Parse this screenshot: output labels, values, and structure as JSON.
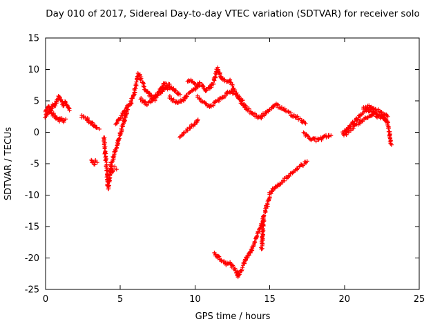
{
  "page": {
    "background": "#ffffff"
  },
  "chart_data": {
    "type": "scatter",
    "title": "Day 010 of 2017, Sidereal Day-to-day VTEC variation (SDTVAR) for receiver solo",
    "xlabel": "GPS time / hours",
    "ylabel": "SDTVAR / TECUs",
    "xlim": [
      0,
      25
    ],
    "ylim": [
      -25,
      15
    ],
    "x_ticks": [
      0,
      5,
      10,
      15,
      20,
      25
    ],
    "y_ticks": [
      -25,
      -20,
      -15,
      -10,
      -5,
      0,
      5,
      10,
      15
    ],
    "grid": false,
    "legend": "none",
    "marker": "plus",
    "marker_color": "#ff0000",
    "axis_color": "#000000",
    "series": [
      {
        "name": "track01",
        "points": [
          [
            0,
            3.2
          ],
          [
            0.1,
            3.8
          ],
          [
            0.2,
            4.2
          ],
          [
            0.3,
            3.6
          ],
          [
            0.4,
            4.0
          ],
          [
            0.5,
            4.4
          ],
          [
            0.6,
            4.1
          ],
          [
            0.7,
            4.6
          ],
          [
            0.8,
            5.0
          ],
          [
            0.9,
            5.6
          ],
          [
            1.0,
            5.2
          ],
          [
            1.1,
            4.8
          ],
          [
            1.2,
            4.4
          ],
          [
            1.3,
            4.7
          ],
          [
            1.4,
            4.3
          ],
          [
            1.5,
            3.9
          ],
          [
            1.6,
            3.5
          ]
        ]
      },
      {
        "name": "track02",
        "points": [
          [
            0,
            2.6
          ],
          [
            0.15,
            3.0
          ],
          [
            0.3,
            3.4
          ],
          [
            0.45,
            3.0
          ],
          [
            0.6,
            2.6
          ],
          [
            0.75,
            2.2
          ],
          [
            0.9,
            1.9
          ],
          [
            1.05,
            2.2
          ],
          [
            1.2,
            1.8
          ],
          [
            1.35,
            2.1
          ]
        ]
      },
      {
        "name": "track03",
        "points": [
          [
            2.4,
            2.6
          ],
          [
            2.55,
            2.4
          ],
          [
            2.7,
            2.3
          ],
          [
            2.85,
            2.0
          ],
          [
            3.0,
            1.6
          ],
          [
            3.15,
            1.3
          ],
          [
            3.3,
            1.0
          ],
          [
            3.45,
            0.7
          ],
          [
            3.6,
            0.5
          ]
        ]
      },
      {
        "name": "track04",
        "points": [
          [
            3.05,
            -4.4
          ],
          [
            3.15,
            -4.7
          ],
          [
            3.25,
            -4.9
          ],
          [
            3.35,
            -4.6
          ],
          [
            3.45,
            -4.8
          ]
        ]
      },
      {
        "name": "track05",
        "points": [
          [
            3.9,
            -0.8
          ],
          [
            3.95,
            -2.0
          ],
          [
            4.0,
            -3.5
          ],
          [
            4.05,
            -5.0
          ],
          [
            4.1,
            -6.5
          ],
          [
            4.15,
            -8.0
          ],
          [
            4.2,
            -8.8
          ],
          [
            4.25,
            -7.8
          ],
          [
            4.3,
            -6.8
          ],
          [
            4.35,
            -5.8
          ],
          [
            4.4,
            -5.0
          ],
          [
            4.5,
            -4.2
          ],
          [
            4.6,
            -3.4
          ],
          [
            4.7,
            -2.6
          ],
          [
            4.8,
            -1.8
          ],
          [
            4.9,
            -1.0
          ],
          [
            5.0,
            -0.2
          ],
          [
            5.1,
            0.6
          ],
          [
            5.2,
            1.4
          ],
          [
            5.3,
            2.2
          ],
          [
            5.4,
            3.0
          ],
          [
            5.5,
            3.6
          ]
        ]
      },
      {
        "name": "track06",
        "points": [
          [
            4.45,
            -6.2
          ],
          [
            4.55,
            -5.9
          ],
          [
            4.65,
            -5.6
          ],
          [
            4.75,
            -5.9
          ]
        ]
      },
      {
        "name": "track07",
        "points": [
          [
            4.7,
            1.2
          ],
          [
            4.9,
            2.0
          ],
          [
            5.1,
            2.8
          ],
          [
            5.3,
            3.4
          ],
          [
            5.5,
            4.0
          ],
          [
            5.7,
            4.8
          ],
          [
            5.9,
            6.0
          ],
          [
            6.0,
            7.0
          ],
          [
            6.1,
            8.2
          ],
          [
            6.2,
            9.4
          ],
          [
            6.3,
            9.0
          ],
          [
            6.4,
            8.4
          ],
          [
            6.5,
            7.8
          ],
          [
            6.6,
            7.2
          ],
          [
            6.7,
            6.8
          ],
          [
            6.9,
            6.2
          ],
          [
            7.1,
            5.6
          ],
          [
            7.3,
            5.2
          ],
          [
            7.5,
            5.8
          ],
          [
            7.7,
            6.4
          ],
          [
            7.9,
            6.9
          ],
          [
            8.1,
            7.1
          ],
          [
            8.3,
            7.0
          ]
        ]
      },
      {
        "name": "track08",
        "points": [
          [
            6.4,
            5.2
          ],
          [
            6.6,
            4.8
          ],
          [
            6.8,
            4.5
          ],
          [
            7.0,
            4.9
          ],
          [
            7.2,
            5.3
          ],
          [
            7.4,
            5.9
          ],
          [
            7.6,
            6.4
          ],
          [
            7.8,
            7.2
          ],
          [
            8.0,
            7.8
          ],
          [
            8.2,
            7.6
          ],
          [
            8.4,
            7.2
          ],
          [
            8.6,
            6.6
          ],
          [
            8.8,
            6.3
          ],
          [
            9.0,
            6.0
          ]
        ]
      },
      {
        "name": "track09",
        "points": [
          [
            8.3,
            5.6
          ],
          [
            8.5,
            5.2
          ],
          [
            8.7,
            4.9
          ],
          [
            8.9,
            4.7
          ],
          [
            9.1,
            5.0
          ],
          [
            9.3,
            5.4
          ],
          [
            9.5,
            5.9
          ],
          [
            9.7,
            6.3
          ],
          [
            9.9,
            6.7
          ],
          [
            10.1,
            7.1
          ],
          [
            10.3,
            7.4
          ]
        ]
      },
      {
        "name": "track10",
        "points": [
          [
            9.0,
            -0.6
          ],
          [
            9.2,
            -0.2
          ],
          [
            9.4,
            0.2
          ],
          [
            9.6,
            0.6
          ],
          [
            9.8,
            1.0
          ],
          [
            10.0,
            1.5
          ],
          [
            10.2,
            2.0
          ]
        ]
      },
      {
        "name": "track11",
        "points": [
          [
            9.5,
            7.9
          ],
          [
            9.7,
            8.3
          ],
          [
            9.9,
            8.0
          ],
          [
            10.1,
            7.6
          ],
          [
            10.3,
            7.9
          ],
          [
            10.5,
            7.3
          ],
          [
            10.7,
            6.7
          ],
          [
            10.9,
            6.9
          ],
          [
            11.1,
            7.4
          ],
          [
            11.3,
            8.4
          ],
          [
            11.4,
            9.3
          ],
          [
            11.5,
            10.2
          ],
          [
            11.6,
            9.6
          ],
          [
            11.7,
            8.9
          ],
          [
            11.9,
            8.3
          ],
          [
            12.1,
            7.9
          ],
          [
            12.3,
            8.1
          ],
          [
            12.5,
            7.6
          ]
        ]
      },
      {
        "name": "track12",
        "points": [
          [
            10.2,
            5.6
          ],
          [
            10.4,
            5.2
          ],
          [
            10.6,
            4.8
          ],
          [
            10.8,
            4.4
          ],
          [
            11.0,
            4.1
          ],
          [
            11.2,
            4.4
          ],
          [
            11.4,
            4.8
          ],
          [
            11.6,
            5.1
          ],
          [
            11.8,
            5.5
          ],
          [
            12.0,
            5.9
          ],
          [
            12.2,
            6.3
          ],
          [
            12.4,
            6.5
          ],
          [
            12.6,
            6.2
          ],
          [
            12.8,
            5.8
          ],
          [
            13.0,
            5.4
          ],
          [
            13.2,
            5.1
          ]
        ]
      },
      {
        "name": "track13",
        "points": [
          [
            12.5,
            7.2
          ],
          [
            12.7,
            6.4
          ],
          [
            12.9,
            5.6
          ],
          [
            13.1,
            4.8
          ],
          [
            13.3,
            4.2
          ],
          [
            13.5,
            3.7
          ],
          [
            13.7,
            3.3
          ],
          [
            13.9,
            2.9
          ],
          [
            14.1,
            2.6
          ],
          [
            14.3,
            2.3
          ],
          [
            14.5,
            2.6
          ],
          [
            14.7,
            3.0
          ],
          [
            14.9,
            3.3
          ]
        ]
      },
      {
        "name": "track14",
        "points": [
          [
            15.0,
            3.6
          ],
          [
            15.2,
            4.0
          ],
          [
            15.4,
            4.3
          ],
          [
            15.6,
            4.1
          ],
          [
            15.8,
            3.8
          ],
          [
            16.0,
            3.5
          ],
          [
            16.2,
            3.2
          ],
          [
            16.4,
            2.9
          ],
          [
            16.6,
            2.6
          ],
          [
            16.8,
            2.3
          ],
          [
            17.0,
            2.0
          ],
          [
            17.2,
            1.7
          ],
          [
            17.4,
            1.4
          ]
        ]
      },
      {
        "name": "track15",
        "points": [
          [
            17.3,
            -0.2
          ],
          [
            17.5,
            -0.6
          ],
          [
            17.7,
            -0.9
          ],
          [
            17.9,
            -1.1
          ],
          [
            18.1,
            -1.2
          ],
          [
            18.3,
            -1.1
          ],
          [
            18.5,
            -1.0
          ],
          [
            18.7,
            -0.8
          ],
          [
            18.9,
            -0.6
          ],
          [
            19.1,
            -0.5
          ]
        ]
      },
      {
        "name": "track16",
        "points": [
          [
            11.3,
            -19.3
          ],
          [
            11.5,
            -19.8
          ],
          [
            11.7,
            -20.2
          ],
          [
            11.9,
            -20.6
          ],
          [
            12.1,
            -20.9
          ],
          [
            12.3,
            -20.7
          ],
          [
            12.5,
            -21.3
          ],
          [
            12.7,
            -21.9
          ],
          [
            12.8,
            -22.4
          ],
          [
            12.9,
            -22.9
          ],
          [
            13.0,
            -22.5
          ],
          [
            13.1,
            -21.9
          ],
          [
            13.2,
            -21.3
          ],
          [
            13.3,
            -20.7
          ],
          [
            13.4,
            -20.2
          ],
          [
            13.5,
            -19.8
          ],
          [
            13.6,
            -19.5
          ],
          [
            13.7,
            -19.1
          ],
          [
            13.8,
            -18.6
          ],
          [
            13.9,
            -18.0
          ],
          [
            14.0,
            -17.4
          ],
          [
            14.1,
            -16.8
          ],
          [
            14.2,
            -16.2
          ],
          [
            14.3,
            -15.6
          ],
          [
            14.4,
            -15.0
          ],
          [
            14.5,
            -14.2
          ],
          [
            14.6,
            -13.4
          ],
          [
            14.7,
            -12.6
          ],
          [
            14.8,
            -11.8
          ],
          [
            14.9,
            -11.0
          ],
          [
            15.0,
            -10.3
          ]
        ]
      },
      {
        "name": "track17",
        "points": [
          [
            14.45,
            -18.5
          ],
          [
            14.5,
            -17.5
          ],
          [
            14.5,
            -16.5
          ],
          [
            14.55,
            -15.5
          ],
          [
            14.55,
            -14.5
          ],
          [
            14.6,
            -13.8
          ]
        ]
      },
      {
        "name": "track18",
        "points": [
          [
            15.0,
            -9.7
          ],
          [
            15.2,
            -9.2
          ],
          [
            15.4,
            -8.7
          ],
          [
            15.6,
            -8.3
          ],
          [
            15.8,
            -7.9
          ],
          [
            16.0,
            -7.5
          ],
          [
            16.2,
            -7.1
          ],
          [
            16.4,
            -6.7
          ],
          [
            16.6,
            -6.3
          ],
          [
            16.8,
            -5.9
          ],
          [
            17.0,
            -5.5
          ],
          [
            17.2,
            -5.1
          ],
          [
            17.4,
            -4.8
          ],
          [
            17.5,
            -4.6
          ]
        ]
      },
      {
        "name": "track19",
        "points": [
          [
            19.9,
            -0.2
          ],
          [
            20.1,
            0.3
          ],
          [
            20.3,
            0.8
          ],
          [
            20.5,
            1.3
          ],
          [
            20.7,
            1.8
          ],
          [
            20.9,
            2.3
          ],
          [
            21.1,
            2.8
          ],
          [
            21.3,
            3.2
          ],
          [
            21.5,
            3.6
          ],
          [
            21.7,
            3.4
          ],
          [
            21.9,
            3.2
          ],
          [
            22.1,
            3.0
          ],
          [
            22.3,
            2.8
          ],
          [
            22.5,
            2.6
          ],
          [
            22.7,
            2.2
          ],
          [
            22.85,
            1.6
          ],
          [
            22.95,
            0.8
          ],
          [
            23.0,
            0.0
          ],
          [
            23.05,
            -0.8
          ],
          [
            23.1,
            -1.6
          ],
          [
            23.15,
            -2.0
          ]
        ]
      },
      {
        "name": "track20",
        "points": [
          [
            20.0,
            -0.4
          ],
          [
            20.2,
            0.0
          ],
          [
            20.4,
            0.4
          ],
          [
            20.6,
            0.8
          ],
          [
            20.8,
            1.2
          ],
          [
            21.0,
            1.6
          ],
          [
            21.2,
            1.9
          ],
          [
            21.4,
            2.2
          ],
          [
            21.6,
            2.4
          ],
          [
            21.8,
            2.6
          ],
          [
            22.0,
            2.7
          ],
          [
            22.2,
            2.6
          ],
          [
            22.4,
            2.4
          ],
          [
            22.6,
            2.2
          ],
          [
            22.8,
            2.0
          ]
        ]
      },
      {
        "name": "track21",
        "points": [
          [
            21.3,
            3.9
          ],
          [
            21.5,
            4.1
          ],
          [
            21.7,
            4.0
          ],
          [
            21.9,
            3.8
          ],
          [
            22.1,
            3.6
          ],
          [
            22.3,
            3.4
          ],
          [
            22.5,
            3.1
          ],
          [
            22.7,
            2.8
          ],
          [
            22.9,
            2.5
          ]
        ]
      }
    ]
  }
}
